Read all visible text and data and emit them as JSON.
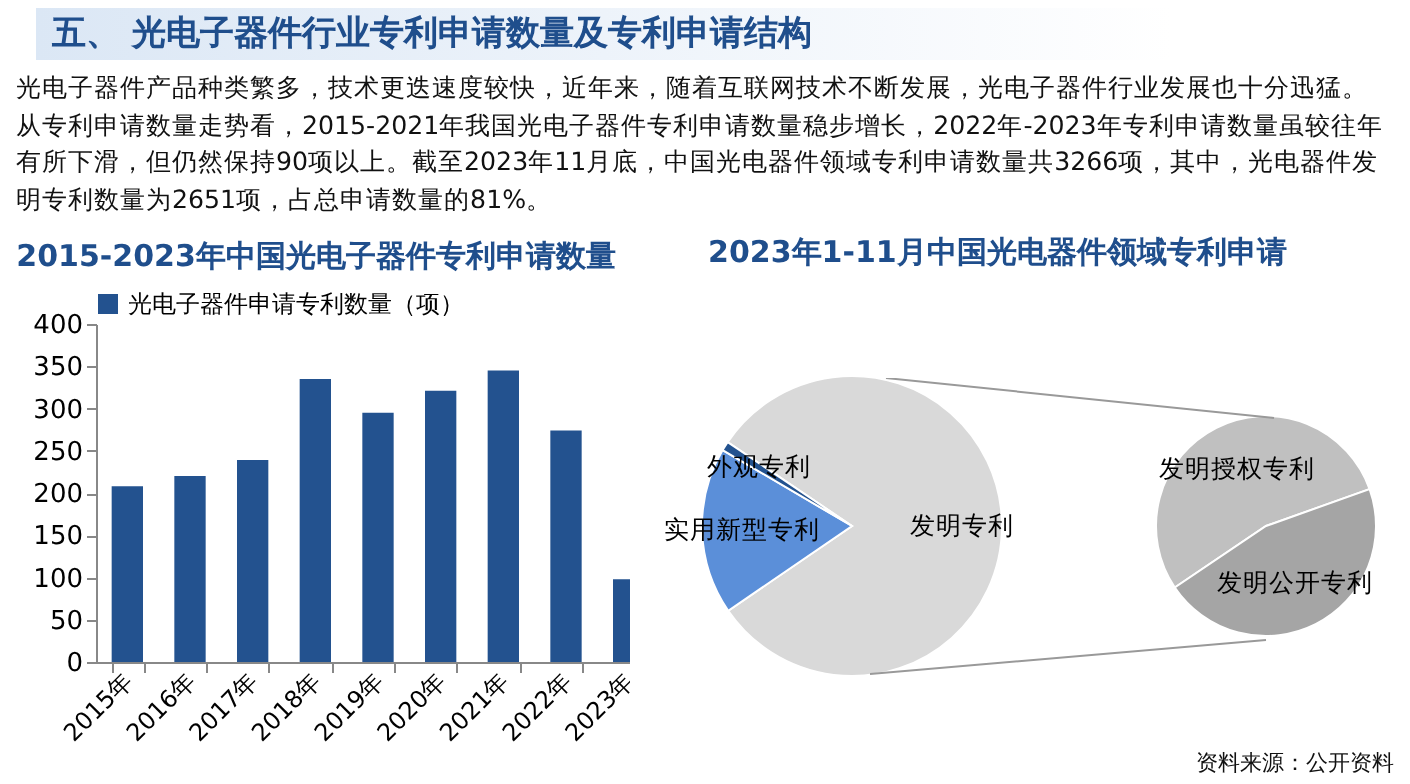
{
  "chart_data": [
    {
      "type": "other",
      "title": "五、 光电子器件行业专利申请数量及专利申请结构",
      "subtitle": "光电子器件产品种类繁多，技术更迭速度较快，近年来，随着互联网技术不断发展，光电子器件行业发展也十分迅猛。从专利申请数量走势看，2015-2021年我国光电子器件专利申请数量稳步增长，2022年-2023年专利申请数量虽较往年有所下滑，但仍然保持90项以上。截至2023年11月底，中国光电器件领域专利申请数量共3266项，其中，光电器件发明专利数量为2651项，占总申请数量的81%。"
    },
    {
      "type": "bar",
      "title": "2015-2023年中国光电子器件专利申请数量",
      "categories": [
        "2015年",
        "2016年",
        "2017年",
        "2018年",
        "2019年",
        "2020年",
        "2021年",
        "2022年",
        "2023年"
      ],
      "series": [
        {
          "name": "光电子器件申请专利数量（项）",
          "color": "#23528f",
          "values": [
            208,
            220,
            239,
            335,
            295,
            321,
            345,
            274,
            98
          ]
        }
      ],
      "ylim": [
        0,
        400
      ],
      "yticks": [
        0,
        50,
        100,
        150,
        200,
        250,
        300,
        350,
        400
      ],
      "grid": false,
      "legend": "top"
    },
    {
      "type": "pie",
      "title": "2023年1-11月中国光电器件领域专利申请",
      "categories": [
        "发明专利",
        "实用新型专利",
        "外观专利"
      ],
      "values": [
        81,
        18,
        1
      ],
      "colors": [
        "#d9d9d9",
        "#5b8fd9",
        "#23528f"
      ],
      "annotations": [
        "资料来源：公开资料"
      ]
    },
    {
      "type": "pie",
      "categories": [
        "发明授权专利",
        "发明公开专利"
      ],
      "values": [
        54,
        46
      ],
      "colors": [
        "#c0c0c0",
        "#a5a5a5"
      ]
    }
  ]
}
